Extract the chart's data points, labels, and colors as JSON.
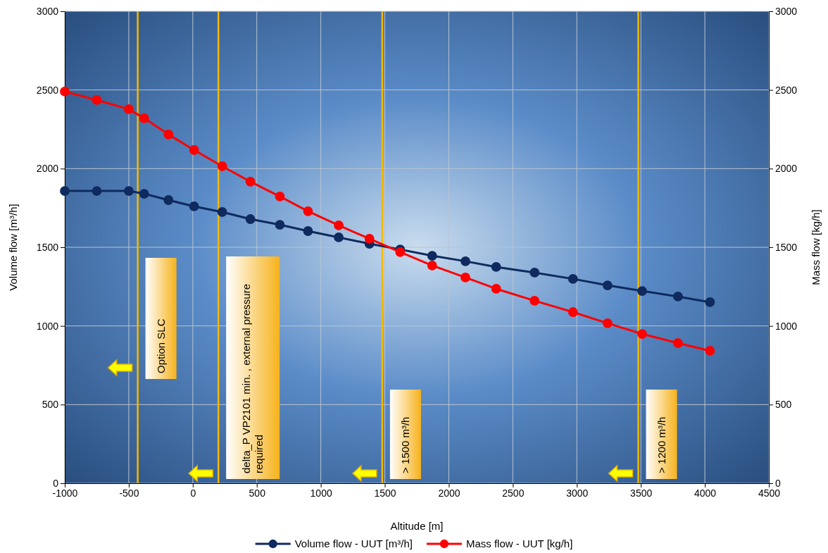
{
  "chart_data": {
    "type": "line",
    "xlabel": "Altitude [m]",
    "ylabel": "Volume flow [m³/h]",
    "y2label": "Mass flow [kg/h]",
    "x": [
      -1000,
      -750,
      -500,
      -380,
      -190,
      10,
      230,
      450,
      680,
      900,
      1140,
      1380,
      1620,
      1870,
      2130,
      2370,
      2670,
      2970,
      3240,
      3510,
      3790,
      4040
    ],
    "series": [
      {
        "name": "Volume flow - UUT [m³/h]",
        "color": "#0e2a5e",
        "values": [
          1858,
          1858,
          1858,
          1840,
          1800,
          1760,
          1724,
          1679,
          1643,
          1603,
          1563,
          1522,
          1486,
          1446,
          1411,
          1375,
          1339,
          1299,
          1258,
          1222,
          1187,
          1151
        ]
      },
      {
        "name": "Mass flow - UUT [kg/h]",
        "color": "#ff0000",
        "axis": "y2",
        "values": [
          2490,
          2436,
          2378,
          2320,
          2217,
          2118,
          2015,
          1917,
          1823,
          1729,
          1639,
          1554,
          1469,
          1384,
          1308,
          1236,
          1160,
          1088,
          1017,
          949,
          891,
          842
        ]
      }
    ],
    "xlim": [
      -1000,
      4500
    ],
    "xticks": [
      -1000,
      -500,
      0,
      500,
      1000,
      1500,
      2000,
      2500,
      3000,
      3500,
      4000,
      4500
    ],
    "ylim": [
      0,
      3000
    ],
    "yticks": [
      0,
      500,
      1000,
      1500,
      2000,
      2500,
      3000
    ],
    "y2lim": [
      0,
      3000
    ],
    "y2ticks": [
      0,
      500,
      1000,
      1500,
      2000,
      2500,
      3000
    ],
    "ref_lines": [
      {
        "axis": "x",
        "value": -430,
        "label": "Option SLC",
        "color": "#f5b800"
      },
      {
        "axis": "x",
        "value": 200,
        "label": "delta_P VP2101 min. , external pressure required",
        "color": "#f5b800"
      },
      {
        "axis": "x",
        "value": 1480,
        "label": "> 1500 m³/h",
        "color": "#f5b800"
      },
      {
        "axis": "x",
        "value": 3480,
        "label": "> 1200 m³/h",
        "color": "#f5b800"
      }
    ],
    "grid": true,
    "legend": "bottom",
    "marker": "circle",
    "line_style": "solid"
  }
}
